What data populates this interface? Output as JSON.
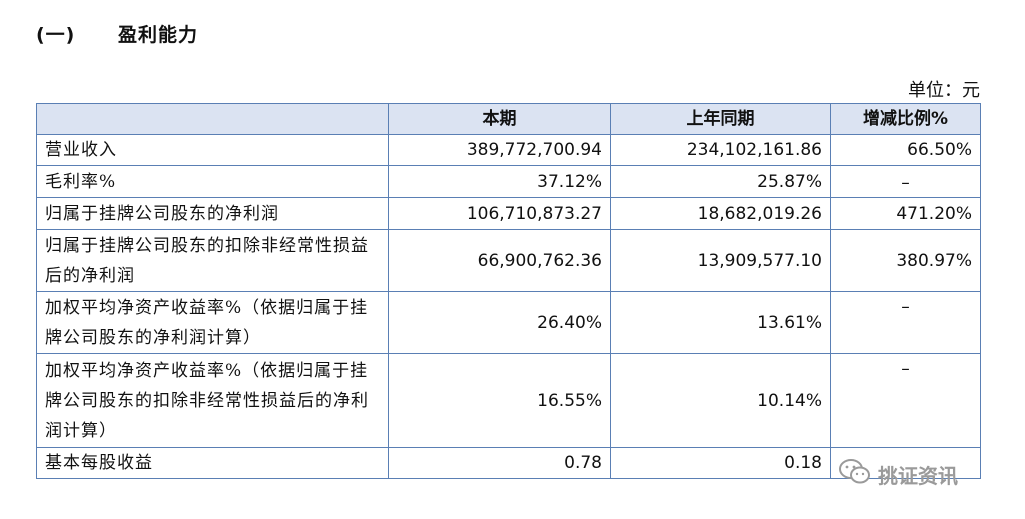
{
  "section": {
    "number": "(一)",
    "title": "盈利能力"
  },
  "unit_label": "单位：元",
  "table": {
    "headers": [
      "",
      "本期",
      "上年同期",
      "增减比例%"
    ],
    "rows": [
      {
        "label": "营业收入",
        "current": "389,772,700.94",
        "previous": "234,102,161.86",
        "change": "66.50%"
      },
      {
        "label": "毛利率%",
        "current": "37.12%",
        "previous": "25.87%",
        "change": "–"
      },
      {
        "label": "归属于挂牌公司股东的净利润",
        "current": "106,710,873.27",
        "previous": "18,682,019.26",
        "change": "471.20%"
      },
      {
        "label": "归属于挂牌公司股东的扣除非经常性损益后的净利润",
        "current": "66,900,762.36",
        "previous": "13,909,577.10",
        "change": "380.97%"
      },
      {
        "label": "加权平均净资产收益率%（依据归属于挂牌公司股东的净利润计算）",
        "current": "26.40%",
        "previous": "13.61%",
        "change": "–"
      },
      {
        "label": "加权平均净资产收益率%（依据归属于挂牌公司股东的扣除非经常性损益后的净利润计算）",
        "current": "16.55%",
        "previous": "10.14%",
        "change": "–"
      },
      {
        "label": "基本每股收益",
        "current": "0.78",
        "previous": "0.18",
        "change": ""
      }
    ]
  },
  "watermark": {
    "text": "挑证资讯",
    "icon": "wechat-icon"
  }
}
